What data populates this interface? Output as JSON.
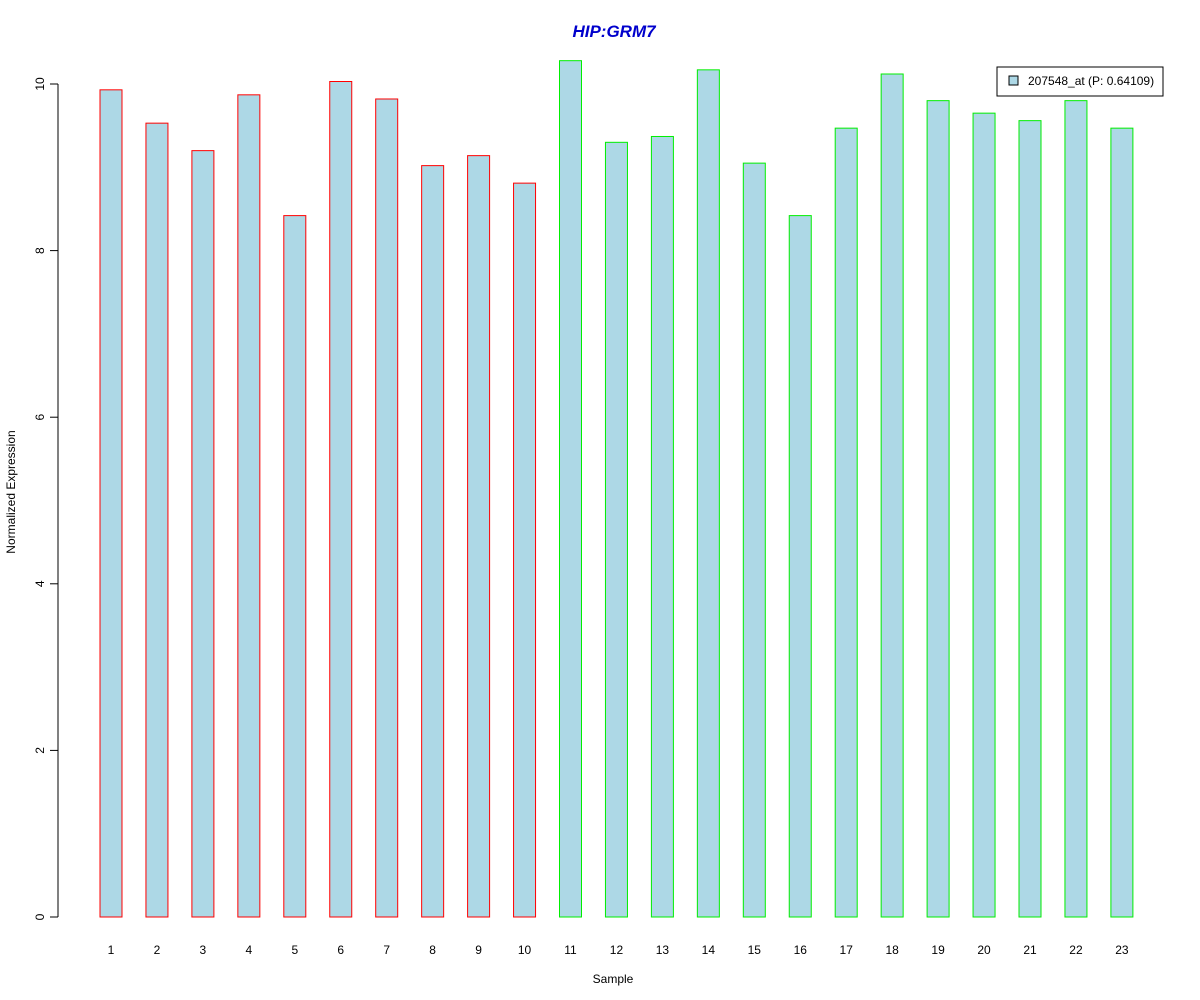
{
  "chart_data": {
    "type": "bar",
    "title": "HIP:GRM7",
    "xlabel": "Sample",
    "ylabel": "Normalized Expression",
    "ylim": [
      0,
      10.5
    ],
    "yticks": [
      "0",
      "2",
      "4",
      "6",
      "8",
      "10"
    ],
    "grid": false,
    "legend": {
      "placement": "top-right",
      "entries": [
        {
          "label": "207548_at (P: 0.64109)",
          "fill_color": "#add8e6"
        }
      ]
    },
    "fill_color": "#add8e6",
    "group_colors": {
      "group1": "#ff0000",
      "group2": "#00ee00"
    },
    "categories": [
      "1",
      "2",
      "3",
      "4",
      "5",
      "6",
      "7",
      "8",
      "9",
      "10",
      "11",
      "12",
      "13",
      "14",
      "15",
      "16",
      "17",
      "18",
      "19",
      "20",
      "21",
      "22",
      "23"
    ],
    "groups": [
      "group1",
      "group1",
      "group1",
      "group1",
      "group1",
      "group1",
      "group1",
      "group1",
      "group1",
      "group1",
      "group2",
      "group2",
      "group2",
      "group2",
      "group2",
      "group2",
      "group2",
      "group2",
      "group2",
      "group2",
      "group2",
      "group2",
      "group2"
    ],
    "series": [
      {
        "values": [
          9.93,
          9.53,
          9.2,
          9.87,
          8.42,
          10.03,
          9.82,
          9.02,
          9.14,
          8.81,
          10.28,
          9.3,
          9.37,
          10.17,
          9.05,
          8.42,
          9.47,
          10.12,
          9.8,
          9.65,
          9.56,
          9.8,
          9.47
        ]
      }
    ]
  }
}
